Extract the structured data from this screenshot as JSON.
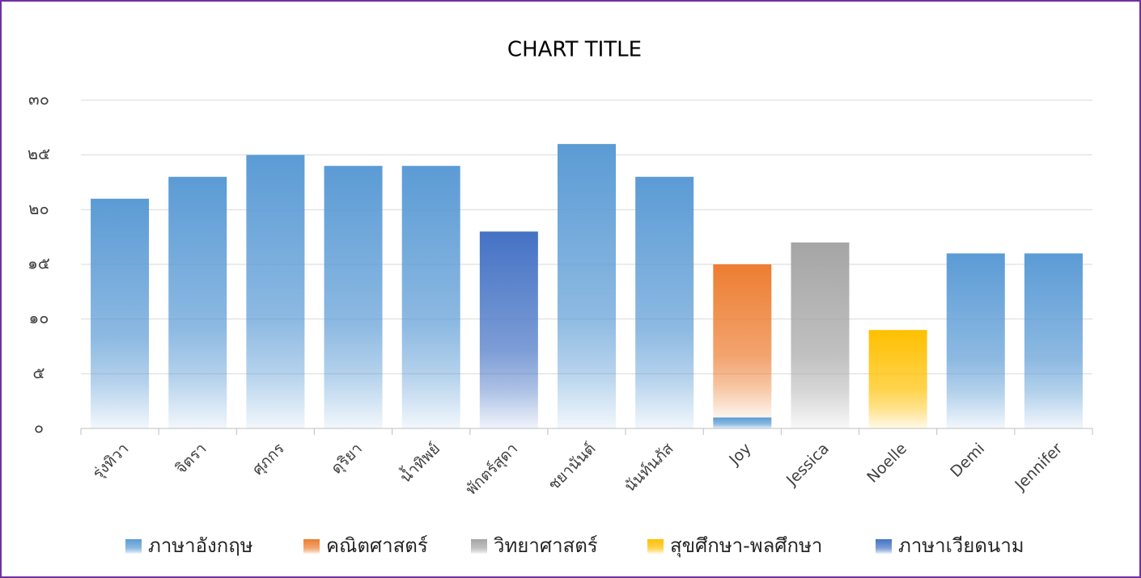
{
  "chart_data": {
    "type": "stacked_bar",
    "title": "CHART TITLE",
    "categories": [
      "รุ่งทิวา",
      "จิตรา",
      "ศุภกร",
      "ดุริยา",
      "น้ำทิพย์",
      "พักตร์สุดา",
      "ชยานันต์",
      "นันท์นภัส",
      "Joy",
      "Jessica",
      "Noelle",
      "Demi",
      "Jennifer"
    ],
    "series": [
      {
        "name": "ภาษาอังกฤษ",
        "color": "#5b9bd5",
        "values": [
          21,
          23,
          25,
          24,
          24,
          null,
          26,
          23,
          1,
          null,
          null,
          16,
          16
        ]
      },
      {
        "name": "คณิตศาสตร์",
        "color": "#ed7d31",
        "values": [
          null,
          null,
          null,
          null,
          null,
          null,
          null,
          null,
          14,
          null,
          null,
          null,
          null
        ]
      },
      {
        "name": "วิทยาศาสตร์",
        "color": "#a5a5a5",
        "values": [
          null,
          null,
          null,
          null,
          null,
          null,
          null,
          null,
          null,
          17,
          null,
          null,
          null
        ]
      },
      {
        "name": "สุขศึกษา-พลศึกษา",
        "color": "#ffc000",
        "values": [
          null,
          null,
          null,
          null,
          null,
          null,
          null,
          null,
          null,
          null,
          9,
          null,
          null
        ]
      },
      {
        "name": "ภาษาเวียดนาม",
        "color": "#4472c4",
        "values": [
          null,
          null,
          null,
          null,
          null,
          18,
          null,
          null,
          null,
          null,
          null,
          null,
          null
        ]
      }
    ],
    "ylim": [
      0,
      30
    ],
    "yticks": [
      {
        "value": 0,
        "label": "๐"
      },
      {
        "value": 5,
        "label": "๕"
      },
      {
        "value": 10,
        "label": "๑๐"
      },
      {
        "value": 15,
        "label": "๑๕"
      },
      {
        "value": 20,
        "label": "๒๐"
      },
      {
        "value": 25,
        "label": "๒๕"
      },
      {
        "value": 30,
        "label": "๓๐"
      }
    ],
    "grid": true,
    "legend": "bottom"
  }
}
